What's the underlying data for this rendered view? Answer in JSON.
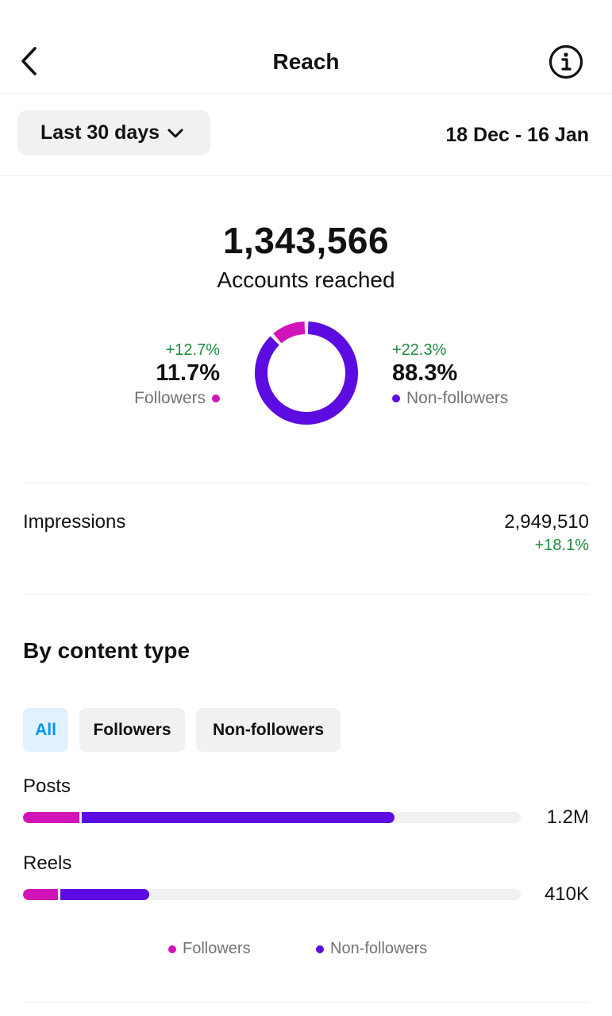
{
  "header": {
    "title": "Reach",
    "back_icon": "chevron-left-icon",
    "info_icon": "info-icon"
  },
  "range": {
    "selector_label": "Last 30 days",
    "date_range": "18 Dec - 16 Jan"
  },
  "summary": {
    "total": "1,343,566",
    "total_label": "Accounts reached"
  },
  "split": {
    "followers": {
      "change": "+12.7%",
      "percent": "11.7%",
      "label": "Followers",
      "fraction": 0.117
    },
    "non_followers": {
      "change": "+22.3%",
      "percent": "88.3%",
      "label": "Non-followers",
      "fraction": 0.883
    }
  },
  "impressions": {
    "label": "Impressions",
    "value": "2,949,510",
    "change": "+18.1%"
  },
  "content_type": {
    "title": "By content type",
    "filters": [
      {
        "label": "All",
        "active": true
      },
      {
        "label": "Followers",
        "active": false
      },
      {
        "label": "Non-followers",
        "active": false
      }
    ],
    "rows": [
      {
        "label": "Posts",
        "value": "1.2M",
        "followers_fraction": 0.113,
        "non_followers_fraction": 0.634
      },
      {
        "label": "Reels",
        "value": "410K",
        "followers_fraction": 0.07,
        "non_followers_fraction": 0.184
      }
    ],
    "legend": {
      "followers": "Followers",
      "non_followers": "Non-followers"
    }
  },
  "colors": {
    "followers": "#d014b8",
    "non_followers": "#5c0ce0",
    "positive": "#1f8a3b",
    "chip_active": "#0095f6"
  }
}
